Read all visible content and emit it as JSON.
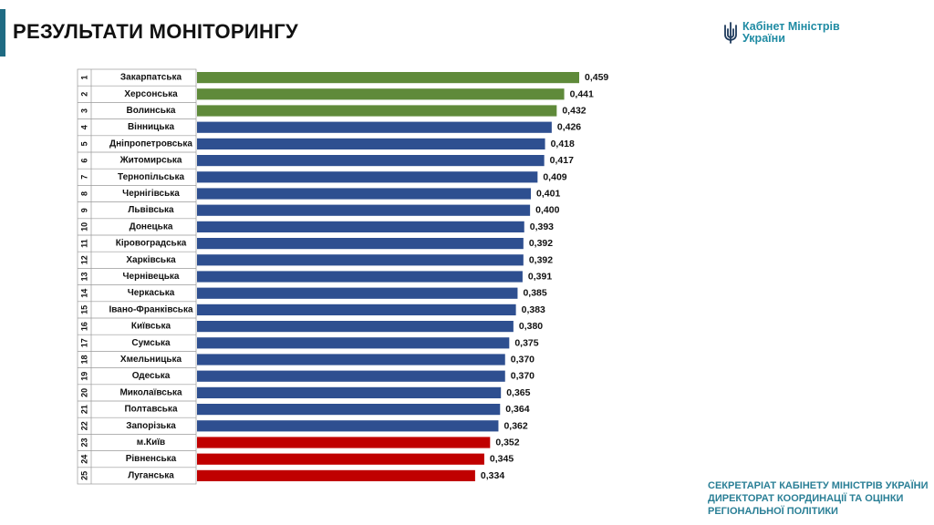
{
  "header": {
    "title": "РЕЗУЛЬТАТИ МОНІТОРИНГУ"
  },
  "logo": {
    "line1": "Кабінет Міністрів",
    "line2": "України",
    "icon": "trident-icon"
  },
  "footer": {
    "line1": "СЕКРЕТАРІАТ КАБІНЕТУ МІНІСТРІВ УКРАЇНИ",
    "line2": "ДИРЕКТОРАТ КООРДИНАЦІЇ ТА ОЦІНКИ",
    "line3": "РЕГІОНАЛЬНОЇ ПОЛІТИКИ"
  },
  "colors": {
    "top": "#5f8a3a",
    "middle": "#2e4f90",
    "bottom": "#c00000",
    "accent": "#1f6b83"
  },
  "chart_data": {
    "type": "bar",
    "orientation": "horizontal",
    "categories": [
      "Закарпатська",
      "Херсонська",
      "Волинська",
      "Вінницька",
      "Дніпропетровська",
      "Житомирська",
      "Тернопільська",
      "Чернігівська",
      "Львівська",
      "Донецька",
      "Кіровоградська",
      "Харківська",
      "Чернівецька",
      "Черкаська",
      "Івано-Франківська",
      "Київська",
      "Сумська",
      "Хмельницька",
      "Одеська",
      "Миколаївська",
      "Полтавська",
      "Запорізька",
      "м.Київ",
      "Рівненська",
      "Луганська"
    ],
    "ranks": [
      "1",
      "2",
      "3",
      "4",
      "5",
      "6",
      "7",
      "8",
      "9",
      "10",
      "11",
      "12",
      "13",
      "14",
      "15",
      "16",
      "17",
      "18",
      "19",
      "20",
      "21",
      "22",
      "23",
      "24",
      "25"
    ],
    "values": [
      0.459,
      0.441,
      0.432,
      0.426,
      0.418,
      0.417,
      0.409,
      0.401,
      0.4,
      0.393,
      0.392,
      0.392,
      0.391,
      0.385,
      0.383,
      0.38,
      0.375,
      0.37,
      0.37,
      0.365,
      0.364,
      0.362,
      0.352,
      0.345,
      0.334
    ],
    "value_labels": [
      "0,459",
      "0,441",
      "0,432",
      "0,426",
      "0,418",
      "0,417",
      "0,409",
      "0,401",
      "0,400",
      "0,393",
      "0,392",
      "0,392",
      "0,391",
      "0,385",
      "0,383",
      "0,380",
      "0,375",
      "0,370",
      "0,370",
      "0,365",
      "0,364",
      "0,362",
      "0,352",
      "0,345",
      "0,334"
    ],
    "groups": [
      "top",
      "top",
      "top",
      "middle",
      "middle",
      "middle",
      "middle",
      "middle",
      "middle",
      "middle",
      "middle",
      "middle",
      "middle",
      "middle",
      "middle",
      "middle",
      "middle",
      "middle",
      "middle",
      "middle",
      "middle",
      "middle",
      "bottom",
      "bottom",
      "bottom"
    ],
    "xlim": [
      0,
      0.459
    ],
    "grid": false,
    "legend": "none"
  }
}
